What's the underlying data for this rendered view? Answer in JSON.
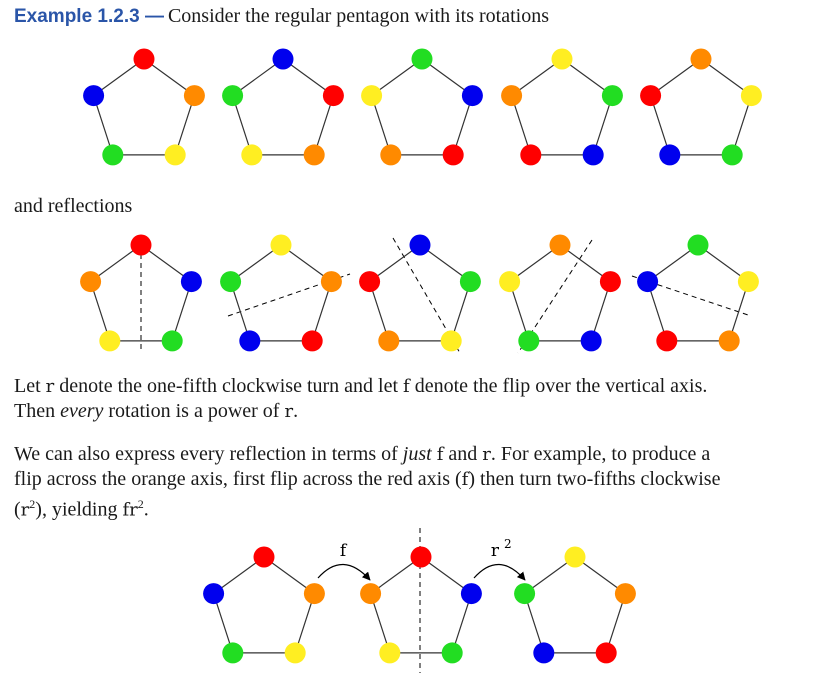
{
  "heading": {
    "label": "Example 1.2.3 —",
    "intro": "Consider the regular pentagon with its rotations"
  },
  "reflections_label": "and reflections",
  "para1": {
    "p1": "Let ",
    "r": "r",
    "p2": " denote the one-fifth clockwise turn and let ",
    "f": "f",
    "p3": " denote the flip over the vertical axis.",
    "p4": "Then ",
    "em": "every",
    "p5": " rotation is a power of ",
    "r2": "r",
    "p6": "."
  },
  "para2": {
    "p1": "We can also express every reflection in terms of ",
    "em": "just",
    "p1b": " ",
    "f": "f",
    "p2": " and ",
    "r": "r",
    "p3": ". For example, to produce a",
    "p4": "flip across the orange axis, first flip across the red axis (",
    "f2": "f",
    "p5": ") then turn two-fifths clockwise",
    "p6": "(",
    "r2": "r",
    "sup2": "2",
    "p7": "), yielding ",
    "fr": "fr",
    "sup3": "2",
    "p8": "."
  },
  "diagram_labels": {
    "flip": "f",
    "turn": "r",
    "turn_exp": "2"
  },
  "colors": {
    "red": "#ff0000",
    "blue": "#0000ee",
    "green": "#22dd22",
    "yellow": "#ffee22",
    "orange": "#ff8a00",
    "heading_blue": "#2a55a8"
  },
  "rotations": [
    [
      "red",
      "orange",
      "yellow",
      "green",
      "blue"
    ],
    [
      "blue",
      "red",
      "orange",
      "yellow",
      "green"
    ],
    [
      "green",
      "blue",
      "red",
      "orange",
      "yellow"
    ],
    [
      "yellow",
      "green",
      "blue",
      "red",
      "orange"
    ],
    [
      "orange",
      "yellow",
      "green",
      "blue",
      "red"
    ]
  ],
  "reflections": [
    [
      "red",
      "blue",
      "green",
      "yellow",
      "orange"
    ],
    [
      "yellow",
      "orange",
      "red",
      "blue",
      "green"
    ],
    [
      "blue",
      "green",
      "yellow",
      "orange",
      "red"
    ],
    [
      "orange",
      "red",
      "blue",
      "green",
      "yellow"
    ],
    [
      "green",
      "yellow",
      "orange",
      "red",
      "blue"
    ]
  ],
  "sequence": [
    [
      "red",
      "orange",
      "yellow",
      "green",
      "blue"
    ],
    [
      "red",
      "blue",
      "green",
      "yellow",
      "orange"
    ],
    [
      "yellow",
      "orange",
      "red",
      "blue",
      "green"
    ]
  ]
}
